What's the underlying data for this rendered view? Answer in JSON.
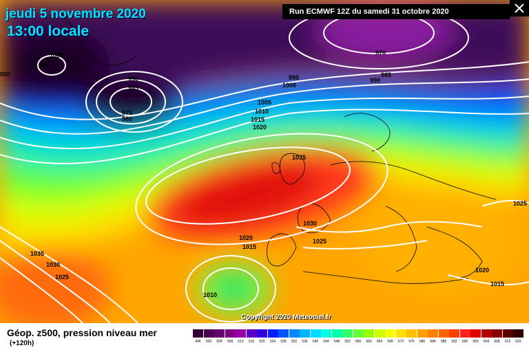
{
  "header": {
    "date": "jeudi 5 novembre 2020",
    "time": "13:00 locale",
    "run": "Run ECMWF 12Z du samedi 31 octobre 2020"
  },
  "map": {
    "copyright": "Copyright 2020 Meteociel.fr",
    "pressure_labels": [
      "1000",
      "995",
      "005",
      "990",
      "985",
      "975",
      "980",
      "1005",
      "1010",
      "1015",
      "1020",
      "1035",
      "970",
      "995",
      "1000",
      "990",
      "985",
      "1030",
      "1020",
      "1015",
      "1025",
      "1035",
      "1030",
      "1025",
      "1010",
      "1025",
      "1020",
      "1015"
    ]
  },
  "footer": {
    "title": "Géop. z500, pression niveau mer",
    "forecast": "(+120h)"
  },
  "legend": {
    "values": [
      "496",
      "500",
      "504",
      "508",
      "512",
      "516",
      "520",
      "524",
      "528",
      "532",
      "536",
      "540",
      "544",
      "548",
      "552",
      "556",
      "560",
      "564",
      "568",
      "572",
      "576",
      "580",
      "584",
      "588",
      "592",
      "596",
      "600",
      "604",
      "608",
      "612",
      "616"
    ],
    "colors": [
      "#330033",
      "#4b0050",
      "#66006e",
      "#800088",
      "#9900a8",
      "#5a00c8",
      "#3000e0",
      "#0020ff",
      "#0055ff",
      "#0088ff",
      "#00b4ff",
      "#00dcff",
      "#00ffe0",
      "#00ffaa",
      "#30ff66",
      "#66ff33",
      "#99ff00",
      "#ccff00",
      "#f5ff00",
      "#ffe000",
      "#ffc000",
      "#ffa000",
      "#ff8000",
      "#ff6000",
      "#ff4000",
      "#ff2020",
      "#e00000",
      "#b40000",
      "#880000",
      "#5a0000",
      "#300000"
    ]
  }
}
